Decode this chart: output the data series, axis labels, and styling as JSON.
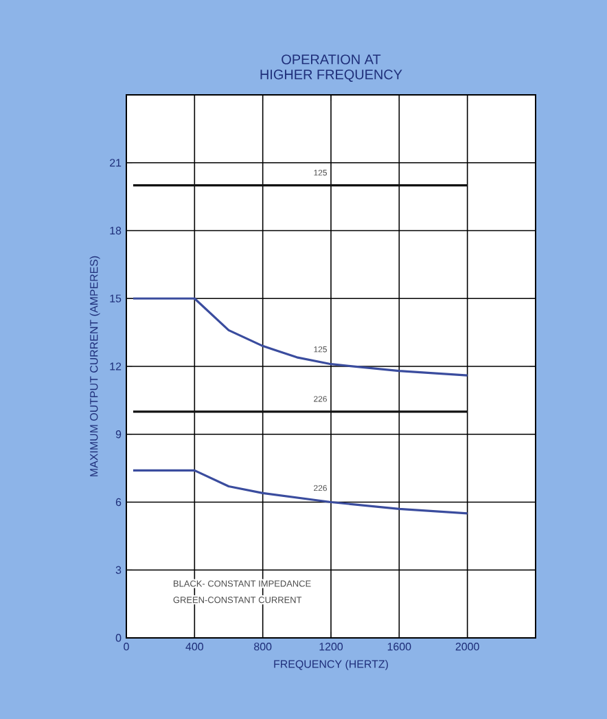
{
  "chart_data": {
    "type": "line",
    "title": "OPERATION AT\nHIGHER FREQUENCY",
    "xlabel": "FREQUENCY    (HERTZ)",
    "ylabel": "MAXIMUM OUTPUT CURRENT (AMPERES)",
    "xlim": [
      0,
      2400
    ],
    "ylim": [
      0,
      24
    ],
    "xticks": [
      0,
      400,
      800,
      1200,
      1600,
      2000
    ],
    "yticks": [
      0,
      3,
      6,
      9,
      12,
      15,
      18,
      21
    ],
    "grid": true,
    "marker": "none",
    "line_style": "solid",
    "series": [
      {
        "name": "125",
        "color": "#111111",
        "x": [
          40,
          2000
        ],
        "values": [
          20,
          20
        ]
      },
      {
        "name": "125",
        "color": "#3a4c9e",
        "x": [
          40,
          400,
          600,
          800,
          1000,
          1200,
          1600,
          2000
        ],
        "values": [
          15,
          15,
          13.6,
          12.9,
          12.4,
          12.1,
          11.8,
          11.6
        ]
      },
      {
        "name": "226",
        "color": "#111111",
        "x": [
          40,
          2000
        ],
        "values": [
          10,
          10
        ]
      },
      {
        "name": "226",
        "color": "#3a4c9e",
        "x": [
          40,
          400,
          600,
          800,
          1200,
          1600,
          2000
        ],
        "values": [
          7.4,
          7.4,
          6.7,
          6.4,
          6.0,
          5.7,
          5.5
        ]
      }
    ],
    "annotations": [
      "BLACK- CONSTANT IMPEDANCE",
      "GREEN-CONSTANT CURRENT"
    ]
  }
}
